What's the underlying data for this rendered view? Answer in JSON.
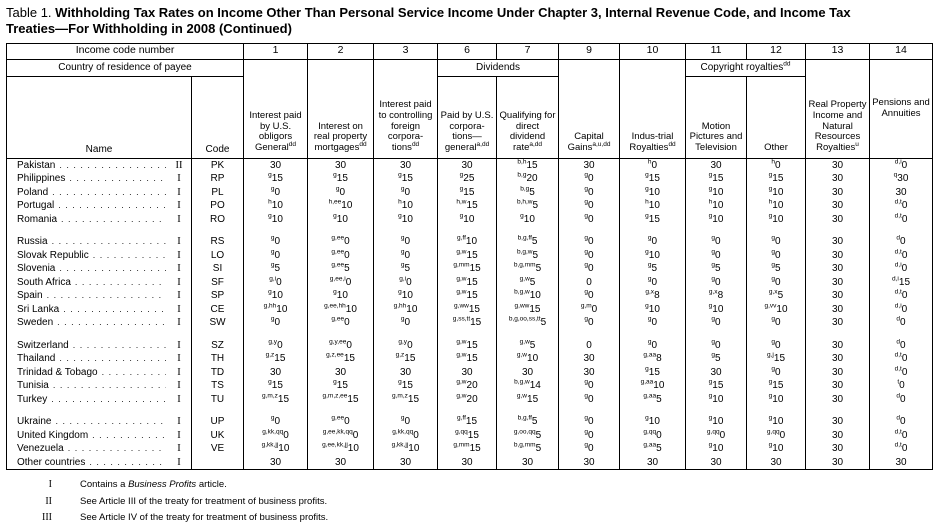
{
  "title": {
    "prefix": "Table 1.",
    "main": " Withholding Tax Rates on Income Other Than Personal Service Income Under Chapter 3, Internal Revenue Code, and Income Tax Treaties—For Withholding in 2008 (Continued)"
  },
  "header": {
    "income_code_label": "Income code number",
    "codes": [
      "1",
      "2",
      "3",
      "6",
      "7",
      "9",
      "10",
      "11",
      "12",
      "13",
      "14"
    ],
    "country_label": "Country of residence of payee",
    "name_label": "Name",
    "code_label": "Code",
    "dividends_label": "Dividends",
    "copyright": {
      "text": "Copyright royalties",
      "sup": "dd"
    },
    "columns": {
      "c1": {
        "text": "Interest paid by U.S. obligors General",
        "sup": "dd"
      },
      "c2": {
        "text": "Interest on real property mortgages",
        "sup": "dd"
      },
      "c3": {
        "text": "Interest paid to controlling foreign corpora-tions",
        "sup": "dd"
      },
      "c6": {
        "text": "Paid by U.S. corpora-tions—general",
        "sup": "a,dd"
      },
      "c7": {
        "text": "Qualifying for direct dividend rate",
        "sup": "a,dd"
      },
      "c9": {
        "text": "Capital Gains",
        "sup": "a,u,dd"
      },
      "c10": {
        "text": "Indus-trial Royalties",
        "sup": "dd"
      },
      "c11": {
        "text": "Motion Pictures and Television",
        "sup": ""
      },
      "c12": {
        "text": "Other",
        "sup": ""
      },
      "c13": {
        "text": "Real Property Income and Natural Resources Royalties",
        "sup": "u"
      },
      "c14": {
        "text": "Pensions and Annuities",
        "sup": ""
      }
    }
  },
  "groups": [
    [
      {
        "name": "Pakistan",
        "treaty": "II",
        "code": "PK",
        "cells": [
          "30",
          "30",
          "30",
          "30",
          "b,h|15",
          "30",
          "h|0",
          "30",
          "h|0",
          "30",
          "d,i|0"
        ]
      },
      {
        "name": "Philippines",
        "treaty": "I",
        "code": "RP",
        "cells": [
          "g|15",
          "g|15",
          "g|15",
          "g|25",
          "b,g|20",
          "g|0",
          "g|15",
          "g|15",
          "g|15",
          "30",
          "q|30"
        ]
      },
      {
        "name": "Poland",
        "treaty": "I",
        "code": "PL",
        "cells": [
          "g|0",
          "g|0",
          "g|0",
          "g|15",
          "b,g|5",
          "g|0",
          "g|10",
          "g|10",
          "g|10",
          "30",
          "30"
        ]
      },
      {
        "name": "Portugal",
        "treaty": "I",
        "code": "PO",
        "cells": [
          "h|10",
          "h,ee|10",
          "h|10",
          "h,w|15",
          "b,h,w|5",
          "g|0",
          "h|10",
          "h|10",
          "h|10",
          "30",
          "d,t|0"
        ]
      },
      {
        "name": "Romania",
        "treaty": "I",
        "code": "RO",
        "cells": [
          "g|10",
          "g|10",
          "g|10",
          "g|10",
          "g|10",
          "g|0",
          "g|15",
          "g|10",
          "g|10",
          "30",
          "d,t|0"
        ]
      }
    ],
    [
      {
        "name": "Russia",
        "treaty": "I",
        "code": "RS",
        "cells": [
          "g|0",
          "g,ee|0",
          "g|0",
          "g,ff|10",
          "b,g,ff|5",
          "g|0",
          "g|0",
          "g|0",
          "g|0",
          "30",
          "d|0"
        ]
      },
      {
        "name": "Slovak Republic",
        "treaty": "I",
        "code": "LO",
        "cells": [
          "g|0",
          "g,ee|0",
          "g|0",
          "g,w|15",
          "b,g,w|5",
          "g|0",
          "g|10",
          "g|0",
          "g|0",
          "30",
          "d,t|0"
        ]
      },
      {
        "name": "Slovenia",
        "treaty": "I",
        "code": "SI",
        "cells": [
          "g|5",
          "g,ee|5",
          "g|5",
          "g,mm|15",
          "b,g,mm|5",
          "g|0",
          "g|5",
          "g|5",
          "g|5",
          "30",
          "d,i|0"
        ]
      },
      {
        "name": "South Africa",
        "treaty": "I",
        "code": "SF",
        "cells": [
          "g,i|0",
          "g,ee,i|0",
          "g,i|0",
          "g,w|15",
          "g,w|5",
          "0",
          "g|0",
          "g|0",
          "g|0",
          "30",
          "d,i|15"
        ]
      },
      {
        "name": "Spain",
        "treaty": "I",
        "code": "SP",
        "cells": [
          "g|10",
          "g|10",
          "g|10",
          "g,w|15",
          "b,g,w|10",
          "g|0",
          "g,x|8",
          "g,x|8",
          "g,x|5",
          "30",
          "d,t|0"
        ]
      },
      {
        "name": "Sri Lanka",
        "treaty": "I",
        "code": "CE",
        "cells": [
          "g,hh|10",
          "g,ee,hh|10",
          "g,hh|10",
          "g,ww|15",
          "g,ww|15",
          "g,m|0",
          "g|10",
          "g|10",
          "g,vv|10",
          "30",
          "d,i|0"
        ]
      },
      {
        "name": "Sweden",
        "treaty": "I",
        "code": "SW",
        "cells": [
          "g|0",
          "g,ee|0",
          "g|0",
          "g,ss,tt|15",
          "b,g,oo,ss,tt|5",
          "g|0",
          "g|0",
          "g|0",
          "g|0",
          "30",
          "d|0"
        ]
      }
    ],
    [
      {
        "name": "Switzerland",
        "treaty": "I",
        "code": "SZ",
        "cells": [
          "g,y|0",
          "g,y,ee|0",
          "g,y|0",
          "g,w|15",
          "g,w|5",
          "0",
          "g|0",
          "g|0",
          "g|0",
          "30",
          "d|0"
        ]
      },
      {
        "name": "Thailand",
        "treaty": "I",
        "code": "TH",
        "cells": [
          "g,z|15",
          "g,z,ee|15",
          "g,z|15",
          "g,w|15",
          "g,w|10",
          "30",
          "g,aa|8",
          "g|5",
          "g,j|15",
          "30",
          "d,t|0"
        ]
      },
      {
        "name": "Trinidad & Tobago",
        "treaty": "I",
        "code": "TD",
        "cells": [
          "30",
          "30",
          "30",
          "30",
          "30",
          "30",
          "g|15",
          "30",
          "g|0",
          "30",
          "d,t|0"
        ]
      },
      {
        "name": "Tunisia",
        "treaty": "I",
        "code": "TS",
        "cells": [
          "g|15",
          "g|15",
          "g|15",
          "g,w|20",
          "b,g,w|14",
          "g|0",
          "g,aa|10",
          "g|15",
          "g|15",
          "30",
          "t|0"
        ]
      },
      {
        "name": "Turkey",
        "treaty": "I",
        "code": "TU",
        "cells": [
          "g,m,z|15",
          "g,m,z,ee|15",
          "g,m,z|15",
          "g,w|20",
          "g,w|15",
          "g|0",
          "g,aa|5",
          "g|10",
          "g|10",
          "30",
          "d|0"
        ]
      }
    ],
    [
      {
        "name": "Ukraine",
        "treaty": "I",
        "code": "UP",
        "cells": [
          "g|0",
          "g,ee|0",
          "g|0",
          "g,ff|15",
          "b,g,ff|5",
          "g|0",
          "g|10",
          "g|10",
          "g|10",
          "30",
          "d|0"
        ]
      },
      {
        "name": "United Kingdom",
        "treaty": "I",
        "code": "UK",
        "cells": [
          "g,kk,qq|0",
          "g,ee,kk,qq|0",
          "g,kk,qq|0",
          "g,qq|15",
          "g,oo,qq|5",
          "g|0",
          "g,qq|0",
          "g,qq|0",
          "g,qq|0",
          "30",
          "d,t|0"
        ]
      },
      {
        "name": "Venezuela",
        "treaty": "I",
        "code": "VE",
        "cells": [
          "g,kk,jj|10",
          "g,ee,kk,jj|10",
          "g,kk,jj|10",
          "g,mm|15",
          "b,g,mm|5",
          "g|0",
          "g,aa|5",
          "g|10",
          "g|10",
          "30",
          "d,t|0"
        ]
      },
      {
        "name": "Other countries",
        "treaty": "I",
        "code": "",
        "cells": [
          "30",
          "30",
          "30",
          "30",
          "30",
          "30",
          "30",
          "30",
          "30",
          "30",
          "30"
        ]
      }
    ]
  ],
  "footnotes": [
    {
      "marker": "I",
      "pre": "Contains a ",
      "italic": "Business Profits",
      "post": " article."
    },
    {
      "marker": "II",
      "pre": "See Article III of the treaty for treatment of business profits.",
      "italic": "",
      "post": ""
    },
    {
      "marker": "III",
      "pre": "See Article IV of the treaty for treatment of business profits.",
      "italic": "",
      "post": ""
    }
  ]
}
